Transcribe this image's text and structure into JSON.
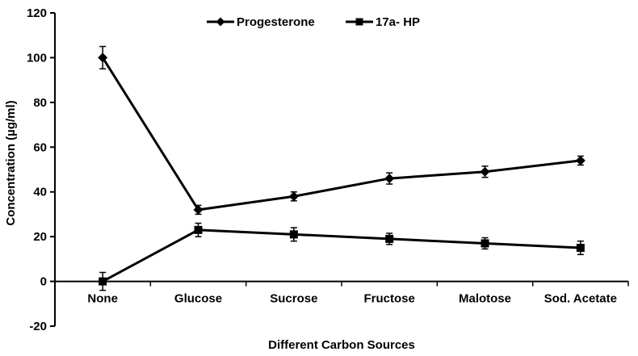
{
  "chart_data": {
    "type": "line",
    "title": "",
    "xlabel": "Different Carbon Sources",
    "ylabel": "Concentration (µg/ml)",
    "categories": [
      "None",
      "Glucose",
      "Sucrose",
      "Fructose",
      "Malotose",
      "Sod. Acetate"
    ],
    "series": [
      {
        "name": "Progesterone",
        "marker": "diamond",
        "values": [
          100,
          32,
          38,
          46,
          49,
          54
        ],
        "errors": [
          5,
          2,
          2,
          2.5,
          2.5,
          2
        ]
      },
      {
        "name": "17a- HP",
        "marker": "square",
        "values": [
          0,
          23,
          21,
          19,
          17,
          15
        ],
        "errors": [
          4,
          3,
          3,
          2.5,
          2.5,
          3
        ]
      }
    ],
    "ylim": [
      -20,
      120
    ],
    "ytick_step": 20,
    "yticks": [
      -20,
      0,
      20,
      40,
      60,
      80,
      100,
      120
    ],
    "grid": false,
    "legend_position": "top",
    "line_color": "#000000",
    "background": "#ffffff"
  }
}
